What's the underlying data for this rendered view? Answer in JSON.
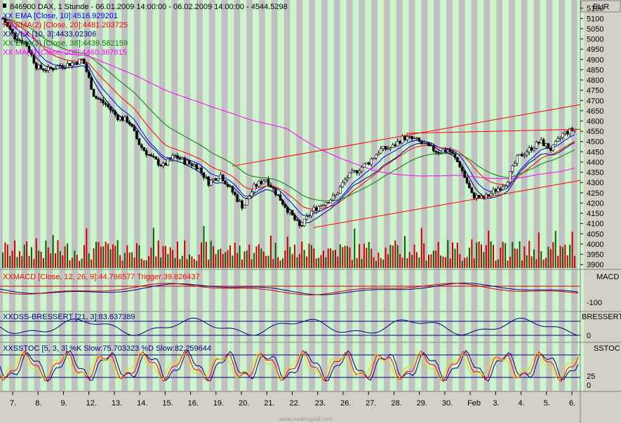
{
  "header": {
    "instrument_line": "846900 DAX, 1 Stunde - 06.01.2009 14:00:00 - 06.02.2009 14:00:00 - 4544.5298",
    "currency": "EUR"
  },
  "indicators_price": [
    {
      "label": "EMA [Close, 10]:4516.929201",
      "color": "#0000ff"
    },
    {
      "label": "EMA(2) [Close, 20]:4481.203725",
      "color": "#ff0000"
    },
    {
      "label": "VLX [10, 3]:4433.02306",
      "color": "#000080"
    },
    {
      "label": "EMA(3) [Close, 38]:4439.582159",
      "color": "#008000"
    },
    {
      "label": "MA(4) [Close, 200]:4460.367615",
      "color": "#ff00ff"
    }
  ],
  "panels": {
    "macd": {
      "label": "MACD [Close, 12, 26, 9]:44.766577 Trigger:39.826437",
      "name": "MACD",
      "tick": "-100"
    },
    "dss": {
      "label": "DSS-BRESSERT [21, 3]:83.637389",
      "name": "BRESSERT",
      "tick": "0"
    },
    "sstoc": {
      "label": "SSTOC [5, 3, 3] %K Slow:75.703323 %D Slow:82.259644",
      "name": "SSTOC",
      "ticks": [
        "25",
        "0"
      ]
    }
  },
  "watermark": "www.tradesignal.com",
  "chart_data": {
    "type": "candlestick",
    "y_axis_ticks": [
      5150,
      5100,
      5050,
      5000,
      4950,
      4900,
      4850,
      4800,
      4750,
      4700,
      4650,
      4600,
      4550,
      4500,
      4450,
      4400,
      4350,
      4300,
      4250,
      4200,
      4150,
      4100,
      4050,
      4000,
      3950,
      3900
    ],
    "ylim": [
      3880,
      5190
    ],
    "x_tick_labels": [
      "7.",
      "8.",
      "9.",
      "12.",
      "13.",
      "14.",
      "15.",
      "16.",
      "19.",
      "20.",
      "21.",
      "22.",
      "23.",
      "26.",
      "27.",
      "28.",
      "29.",
      "30.",
      "Feb",
      "3.",
      "4.",
      "5.",
      "6."
    ],
    "close_path": [
      [
        0,
        5100
      ],
      [
        1,
        5010
      ],
      [
        2,
        4980
      ],
      [
        3,
        4860
      ],
      [
        4,
        4850
      ],
      [
        5,
        4870
      ],
      [
        6,
        4880
      ],
      [
        7,
        4900
      ],
      [
        8,
        4720
      ],
      [
        9,
        4680
      ],
      [
        10,
        4620
      ],
      [
        11,
        4600
      ],
      [
        12,
        4480
      ],
      [
        13,
        4420
      ],
      [
        14,
        4380
      ],
      [
        15,
        4430
      ],
      [
        16,
        4400
      ],
      [
        17,
        4380
      ],
      [
        18,
        4300
      ],
      [
        19,
        4340
      ],
      [
        20,
        4260
      ],
      [
        21,
        4180
      ],
      [
        22,
        4280
      ],
      [
        23,
        4320
      ],
      [
        24,
        4240
      ],
      [
        25,
        4160
      ],
      [
        26,
        4080
      ],
      [
        27,
        4160
      ],
      [
        28,
        4200
      ],
      [
        29,
        4230
      ],
      [
        30,
        4320
      ],
      [
        31,
        4360
      ],
      [
        32,
        4400
      ],
      [
        33,
        4460
      ],
      [
        34,
        4470
      ],
      [
        35,
        4520
      ],
      [
        36,
        4510
      ],
      [
        37,
        4480
      ],
      [
        38,
        4450
      ],
      [
        39,
        4460
      ],
      [
        40,
        4380
      ],
      [
        41,
        4240
      ],
      [
        42,
        4220
      ],
      [
        43,
        4260
      ],
      [
        44,
        4300
      ],
      [
        45,
        4420
      ],
      [
        46,
        4460
      ],
      [
        47,
        4500
      ],
      [
        48,
        4460
      ],
      [
        49,
        4540
      ],
      [
        50,
        4560
      ]
    ],
    "series": [
      {
        "name": "EMA [Close, 10]",
        "color": "#0000ff",
        "last": 4516.929201
      },
      {
        "name": "EMA(2) [Close, 20]",
        "color": "#ff0000",
        "last": 4481.203725
      },
      {
        "name": "VLX [10, 3]",
        "color": "#000080",
        "last": 4433.02306
      },
      {
        "name": "EMA(3) [Close, 38]",
        "color": "#008000",
        "last": 4439.582159
      },
      {
        "name": "MA(4) [Close, 200]",
        "color": "#ff00ff",
        "last": 4460.367615
      }
    ],
    "trendlines": [
      {
        "from": [
          0.4,
          4380
        ],
        "to": [
          1.0,
          4680
        ]
      },
      {
        "from": [
          0.54,
          4080
        ],
        "to": [
          1.0,
          4310
        ]
      },
      {
        "from": [
          0.7,
          4540
        ],
        "to": [
          1.0,
          4560
        ]
      }
    ]
  }
}
